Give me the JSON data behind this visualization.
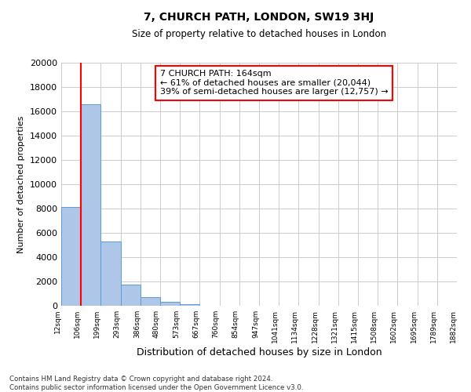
{
  "title": "7, CHURCH PATH, LONDON, SW19 3HJ",
  "subtitle": "Size of property relative to detached houses in London",
  "xlabel": "Distribution of detached houses by size in London",
  "ylabel": "Number of detached properties",
  "bin_labels": [
    "12sqm",
    "106sqm",
    "199sqm",
    "293sqm",
    "386sqm",
    "480sqm",
    "573sqm",
    "667sqm",
    "760sqm",
    "854sqm",
    "947sqm",
    "1041sqm",
    "1134sqm",
    "1228sqm",
    "1321sqm",
    "1415sqm",
    "1508sqm",
    "1602sqm",
    "1695sqm",
    "1789sqm",
    "1882sqm"
  ],
  "bar_values": [
    8100,
    16600,
    5300,
    1750,
    700,
    300,
    150,
    0,
    0,
    0,
    0,
    0,
    0,
    0,
    0,
    0,
    0,
    0,
    0,
    0
  ],
  "bar_color": "#aec6e8",
  "bar_edge_color": "#5b9bd5",
  "vline_x": 1,
  "vline_color": "red",
  "vline_lw": 1.5,
  "ylim": [
    0,
    20000
  ],
  "yticks": [
    0,
    2000,
    4000,
    6000,
    8000,
    10000,
    12000,
    14000,
    16000,
    18000,
    20000
  ],
  "annotation_title": "7 CHURCH PATH: 164sqm",
  "annotation_line1": "← 61% of detached houses are smaller (20,044)",
  "annotation_line2": "39% of semi-detached houses are larger (12,757) →",
  "annotation_box_color": "white",
  "annotation_box_edge": "red",
  "grid_color": "#cccccc",
  "bg_color": "white",
  "footnote1": "Contains HM Land Registry data © Crown copyright and database right 2024.",
  "footnote2": "Contains public sector information licensed under the Open Government Licence v3.0.",
  "n_bins": 20
}
